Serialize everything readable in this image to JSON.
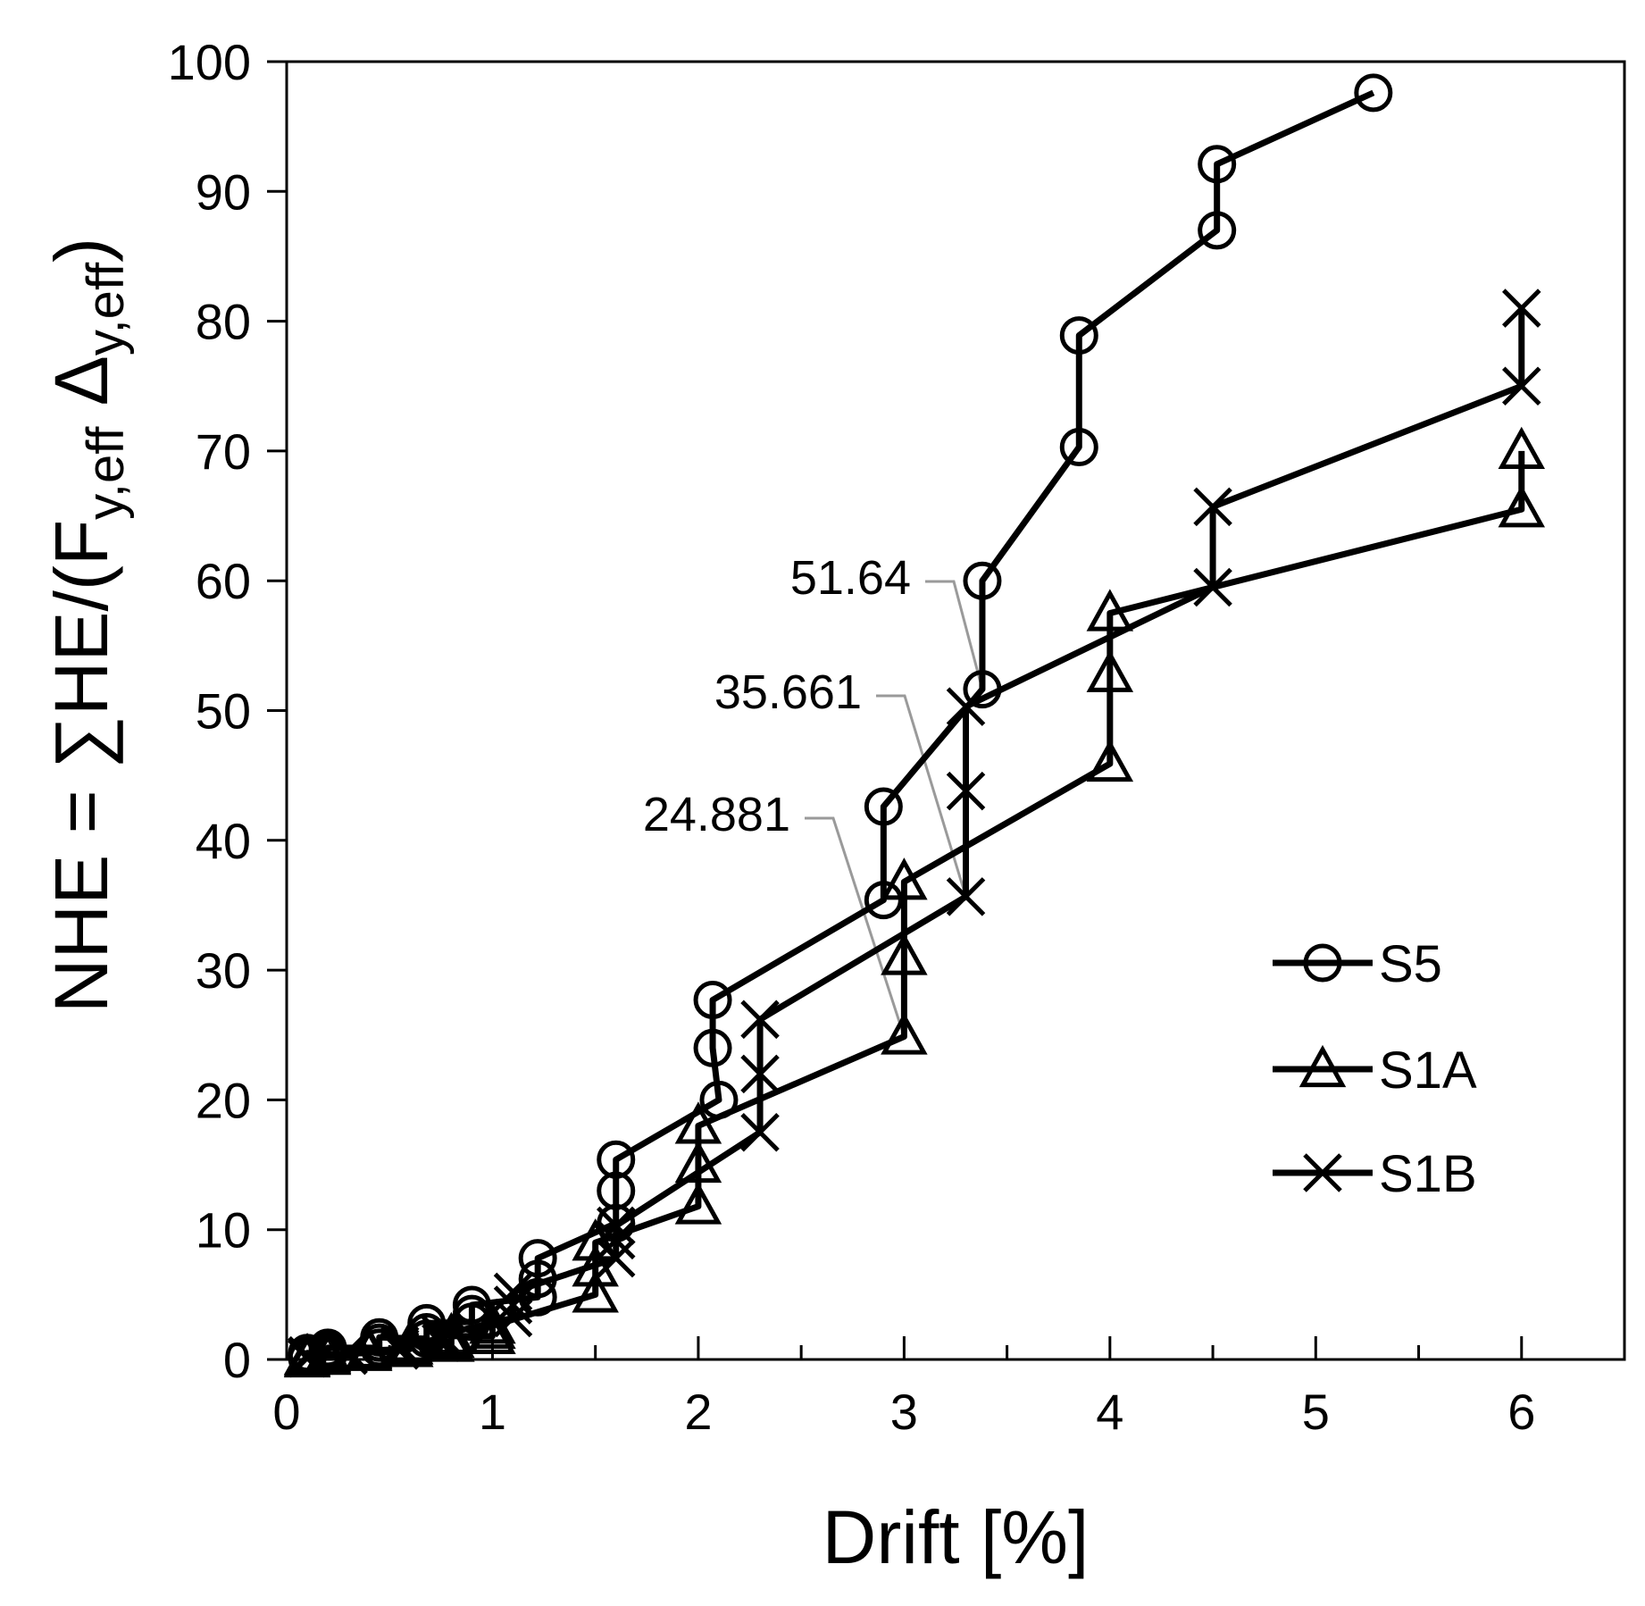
{
  "chart_data": {
    "type": "line",
    "xlabel": "Drift [%]",
    "ylabel": {
      "main": "NHE = ∑HE/(F",
      "sub1": "y,eff",
      "mid": " Δ",
      "sub2": "y,eff",
      "end": ")"
    },
    "xlim": [
      0,
      6.5
    ],
    "ylim": [
      0,
      100
    ],
    "xticks": [
      0,
      1,
      2,
      3,
      4,
      5,
      6
    ],
    "xtick_labels": [
      "0",
      "1",
      "2",
      "3",
      "4",
      "5",
      "6"
    ],
    "yticks": [
      0,
      10,
      20,
      30,
      40,
      50,
      60,
      70,
      80,
      90,
      100
    ],
    "ytick_labels": [
      "0",
      "10",
      "20",
      "30",
      "40",
      "50",
      "60",
      "70",
      "80",
      "90",
      "100"
    ],
    "grid": false,
    "legend_position": "bottom-right",
    "series": [
      {
        "name": "S5",
        "marker": "circle",
        "points": [
          [
            0.1,
            0.1
          ],
          [
            0.1,
            0.3
          ],
          [
            0.1,
            0.5
          ],
          [
            0.2,
            0.3
          ],
          [
            0.2,
            0.6
          ],
          [
            0.2,
            0.9
          ],
          [
            0.45,
            0.9
          ],
          [
            0.45,
            1.3
          ],
          [
            0.45,
            1.7
          ],
          [
            0.68,
            1.6
          ],
          [
            0.68,
            2.1
          ],
          [
            0.68,
            2.8
          ],
          [
            0.9,
            2.9
          ],
          [
            0.9,
            3.5
          ],
          [
            0.9,
            4.2
          ],
          [
            1.22,
            4.8
          ],
          [
            1.22,
            6.2
          ],
          [
            1.22,
            7.8
          ],
          [
            1.6,
            10.5
          ],
          [
            1.6,
            13.0
          ],
          [
            1.6,
            15.4
          ],
          [
            2.1,
            20.0
          ],
          [
            2.07,
            24.0
          ],
          [
            2.07,
            27.7
          ],
          [
            2.9,
            35.4
          ],
          [
            2.9,
            42.6
          ],
          [
            3.38,
            51.64
          ],
          [
            3.38,
            60.0
          ],
          [
            3.85,
            70.3
          ],
          [
            3.85,
            78.9
          ],
          [
            4.52,
            87.0
          ],
          [
            4.52,
            92.1
          ],
          [
            5.28,
            97.6
          ]
        ]
      },
      {
        "name": "S1A",
        "marker": "triangle",
        "points": [
          [
            0.1,
            0.0
          ],
          [
            0.1,
            0.1
          ],
          [
            0.1,
            0.2
          ],
          [
            0.2,
            0.2
          ],
          [
            0.2,
            0.3
          ],
          [
            0.2,
            0.4
          ],
          [
            0.4,
            0.5
          ],
          [
            0.4,
            0.6
          ],
          [
            0.4,
            0.7
          ],
          [
            0.6,
            0.8
          ],
          [
            0.6,
            1.0
          ],
          [
            0.6,
            1.2
          ],
          [
            0.8,
            1.2
          ],
          [
            0.8,
            1.5
          ],
          [
            0.8,
            1.8
          ],
          [
            1.0,
            1.8
          ],
          [
            1.0,
            2.2
          ],
          [
            1.0,
            2.6
          ],
          [
            1.5,
            5.0
          ],
          [
            1.5,
            7.0
          ],
          [
            1.5,
            9.0
          ],
          [
            2.0,
            11.8
          ],
          [
            2.0,
            15.0
          ],
          [
            2.0,
            18.0
          ],
          [
            3.0,
            24.881
          ],
          [
            3.0,
            31.0
          ],
          [
            3.0,
            36.8
          ],
          [
            4.0,
            45.9
          ],
          [
            4.0,
            52.8
          ],
          [
            4.0,
            57.5
          ],
          [
            6.0,
            65.5
          ],
          [
            6.0,
            70.0
          ]
        ]
      },
      {
        "name": "S1B",
        "marker": "x",
        "points": [
          [
            0.1,
            0.1
          ],
          [
            0.1,
            0.2
          ],
          [
            0.1,
            0.3
          ],
          [
            0.3,
            0.3
          ],
          [
            0.3,
            0.5
          ],
          [
            0.3,
            0.6
          ],
          [
            0.55,
            0.7
          ],
          [
            0.55,
            0.9
          ],
          [
            0.55,
            1.1
          ],
          [
            0.75,
            1.3
          ],
          [
            0.75,
            1.6
          ],
          [
            0.75,
            1.9
          ],
          [
            1.1,
            3.2
          ],
          [
            1.1,
            4.2
          ],
          [
            1.1,
            5.2
          ],
          [
            1.6,
            7.8
          ],
          [
            1.6,
            9.2
          ],
          [
            1.6,
            10.3
          ],
          [
            2.3,
            17.5
          ],
          [
            2.3,
            22.0
          ],
          [
            2.3,
            26.2
          ],
          [
            3.3,
            35.661
          ],
          [
            3.3,
            43.8
          ],
          [
            3.3,
            50.3
          ],
          [
            4.5,
            59.5
          ],
          [
            4.5,
            65.7
          ],
          [
            6.0,
            75.0
          ],
          [
            6.0,
            81.0
          ]
        ]
      }
    ],
    "annotations": [
      {
        "text": "51.64",
        "x": 3.38,
        "y": 51.64
      },
      {
        "text": "35.661",
        "x": 3.3,
        "y": 35.661
      },
      {
        "text": "24.881",
        "x": 3.0,
        "y": 24.881
      }
    ]
  }
}
